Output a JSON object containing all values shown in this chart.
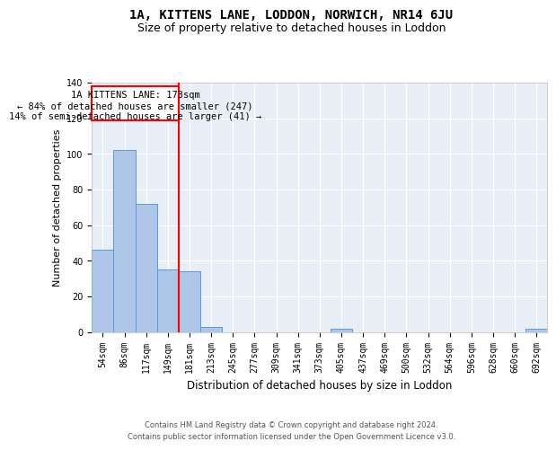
{
  "title": "1A, KITTENS LANE, LODDON, NORWICH, NR14 6JU",
  "subtitle": "Size of property relative to detached houses in Loddon",
  "xlabel": "Distribution of detached houses by size in Loddon",
  "ylabel": "Number of detached properties",
  "footer_line1": "Contains HM Land Registry data © Crown copyright and database right 2024.",
  "footer_line2": "Contains public sector information licensed under the Open Government Licence v3.0.",
  "categories": [
    "54sqm",
    "86sqm",
    "117sqm",
    "149sqm",
    "181sqm",
    "213sqm",
    "245sqm",
    "277sqm",
    "309sqm",
    "341sqm",
    "373sqm",
    "405sqm",
    "437sqm",
    "469sqm",
    "500sqm",
    "532sqm",
    "564sqm",
    "596sqm",
    "628sqm",
    "660sqm",
    "692sqm"
  ],
  "values": [
    46,
    102,
    72,
    35,
    34,
    3,
    0,
    0,
    0,
    0,
    0,
    2,
    0,
    0,
    0,
    0,
    0,
    0,
    0,
    0,
    2
  ],
  "bar_color": "#aec6e8",
  "bar_edge_color": "#5b9bd5",
  "background_color": "#e8eef7",
  "annotation_box_color": "white",
  "annotation_box_edge": "red",
  "red_line_bin": 4,
  "annotation_text_line1": "1A KITTENS LANE: 173sqm",
  "annotation_text_line2": "← 84% of detached houses are smaller (247)",
  "annotation_text_line3": "14% of semi-detached houses are larger (41) →",
  "ylim": [
    0,
    140
  ],
  "yticks": [
    0,
    20,
    40,
    60,
    80,
    100,
    120,
    140
  ],
  "title_fontsize": 10,
  "subtitle_fontsize": 9,
  "annot_fontsize": 7.5,
  "ylabel_fontsize": 8,
  "xlabel_fontsize": 8.5,
  "tick_fontsize": 7
}
